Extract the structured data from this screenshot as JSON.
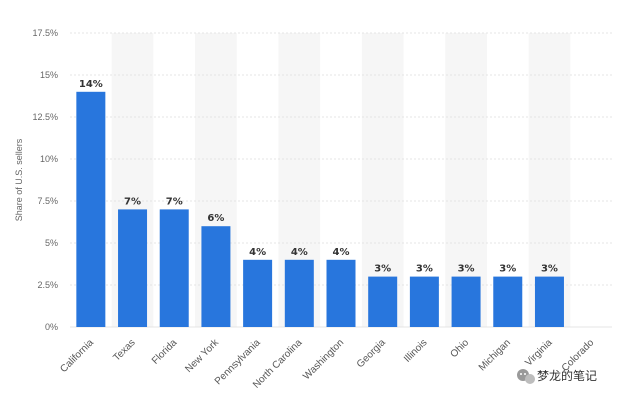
{
  "chart_data": {
    "type": "bar",
    "categories": [
      "California",
      "Texas",
      "Florida",
      "New York",
      "Pennsylvania",
      "North Carolina",
      "Washington",
      "Georgia",
      "Illinois",
      "Ohio",
      "Michigan",
      "Virginia",
      "Colorado"
    ],
    "values": [
      14,
      7,
      7,
      6,
      4,
      4,
      4,
      3,
      3,
      3,
      3,
      3,
      null
    ],
    "data_labels": [
      "14%",
      "7%",
      "7%",
      "6%",
      "4%",
      "4%",
      "4%",
      "3%",
      "3%",
      "3%",
      "3%",
      "3%",
      ""
    ],
    "ylabel": "Share of U.S. sellers",
    "ylim": [
      0,
      17.5
    ],
    "yticks": [
      0,
      2.5,
      5,
      7.5,
      10,
      12.5,
      15,
      17.5
    ],
    "ytick_labels": [
      "0%",
      "2.5%",
      "5%",
      "7.5%",
      "10%",
      "12.5%",
      "15%",
      "17.5%"
    ],
    "grid": true,
    "colors": {
      "bar": "#2876dd",
      "band": "#f6f6f6",
      "grid": "#e4e4e4"
    }
  },
  "watermark": {
    "text": "梦龙的笔记",
    "icon": "wechat-icon"
  }
}
